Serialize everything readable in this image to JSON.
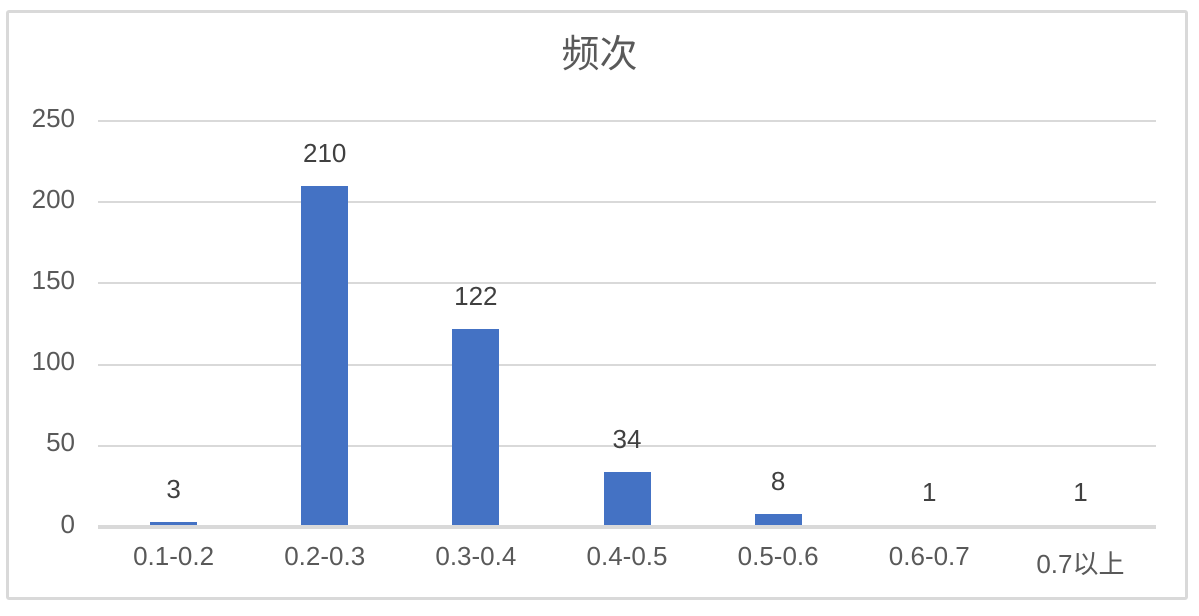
{
  "chart_data": {
    "type": "bar",
    "title": "频次",
    "categories": [
      "0.1-0.2",
      "0.2-0.3",
      "0.3-0.4",
      "0.4-0.5",
      "0.5-0.6",
      "0.6-0.7",
      "0.7以上"
    ],
    "values": [
      3,
      210,
      122,
      34,
      8,
      1,
      1
    ],
    "xlabel": "",
    "ylabel": "",
    "y_ticks": [
      0,
      50,
      100,
      150,
      200,
      250
    ],
    "ylim": [
      0,
      250
    ],
    "grid": true,
    "legend": false,
    "show_data_labels": true,
    "colors": {
      "bar": "#4472C4",
      "grid": "#D9D9D9",
      "axis_line": "#D9D9D9",
      "frame_border": "#D9D9D9",
      "title_text": "#595959",
      "axis_text": "#595959",
      "data_label_text": "#404040",
      "background": "#FFFFFF"
    }
  }
}
